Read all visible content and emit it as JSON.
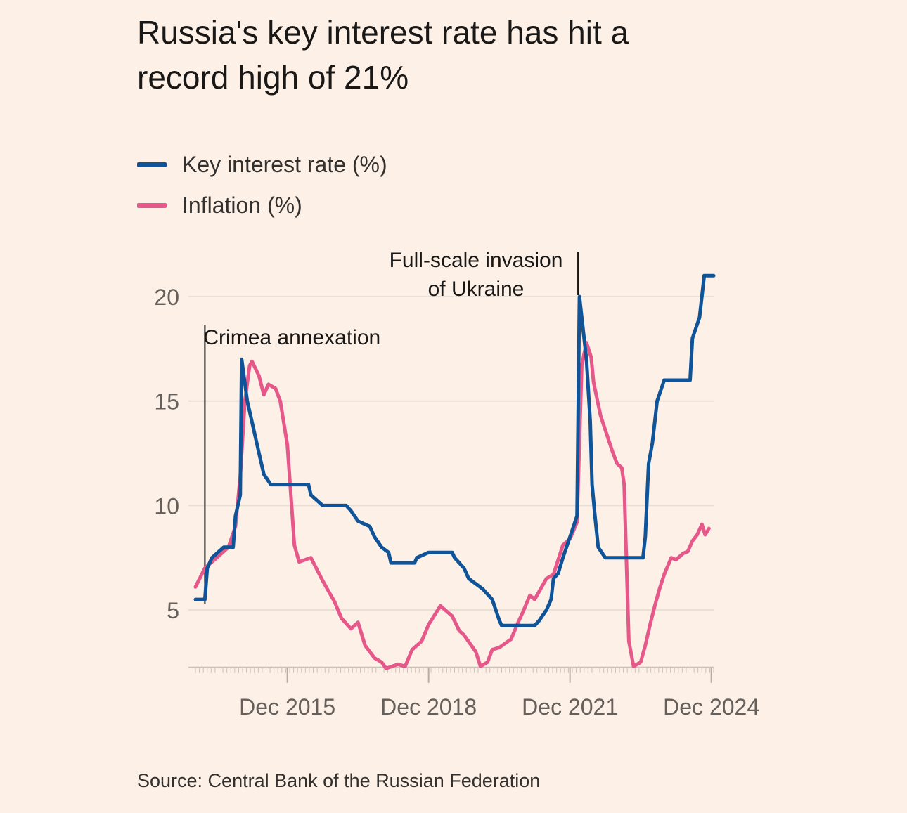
{
  "chart_data": {
    "type": "line",
    "title": "Russia's key interest rate has hit a record high of 21%",
    "source": "Source: Central Bank of the Russian Federation",
    "xlabel": "",
    "ylabel": "",
    "ylim": [
      2.25,
      21.5
    ],
    "xlim": [
      2014.0,
      2025.0
    ],
    "yticks": [
      5,
      10,
      15,
      20
    ],
    "xticks": [
      {
        "value": 2015.95,
        "label": "Dec 2015"
      },
      {
        "value": 2018.95,
        "label": "Dec 2018"
      },
      {
        "value": 2021.95,
        "label": "Dec 2021"
      },
      {
        "value": 2024.95,
        "label": "Dec 2024"
      }
    ],
    "grid": true,
    "legend_placement": "top-left",
    "annotations": [
      {
        "text_lines": [
          "Crimea annexation"
        ],
        "x": 2014.2
      },
      {
        "text_lines": [
          "Full-scale invasion",
          "of Ukraine"
        ],
        "x": 2022.15
      }
    ],
    "series": [
      {
        "name": "Key interest rate (%)",
        "color": "#0f5499",
        "x": [
          2014.0,
          2014.2,
          2014.25,
          2014.35,
          2014.6,
          2014.8,
          2014.85,
          2014.95,
          2014.98,
          2015.1,
          2015.2,
          2015.35,
          2015.45,
          2015.6,
          2016.4,
          2016.45,
          2016.7,
          2017.2,
          2017.3,
          2017.45,
          2017.7,
          2017.8,
          2017.95,
          2018.1,
          2018.15,
          2018.65,
          2018.7,
          2018.95,
          2019.45,
          2019.5,
          2019.6,
          2019.7,
          2019.8,
          2019.95,
          2020.1,
          2020.3,
          2020.45,
          2020.5,
          2021.2,
          2021.3,
          2021.45,
          2021.55,
          2021.6,
          2021.7,
          2021.8,
          2021.95,
          2022.1,
          2022.15,
          2022.3,
          2022.38,
          2022.42,
          2022.48,
          2022.55,
          2022.7,
          2023.5,
          2023.55,
          2023.62,
          2023.7,
          2023.8,
          2023.95,
          2024.5,
          2024.55,
          2024.7,
          2024.8,
          2025.0
        ],
        "y": [
          5.5,
          5.5,
          7.0,
          7.5,
          8.0,
          8.0,
          9.5,
          10.5,
          17.0,
          15.0,
          14.0,
          12.5,
          11.5,
          11.0,
          11.0,
          10.5,
          10.0,
          10.0,
          9.75,
          9.25,
          9.0,
          8.5,
          8.0,
          7.75,
          7.25,
          7.25,
          7.5,
          7.75,
          7.75,
          7.5,
          7.25,
          7.0,
          6.5,
          6.25,
          6.0,
          5.5,
          4.5,
          4.25,
          4.25,
          4.5,
          5.0,
          5.5,
          6.5,
          6.75,
          7.5,
          8.5,
          9.5,
          20.0,
          17.0,
          14.0,
          11.0,
          9.5,
          8.0,
          7.5,
          7.5,
          8.5,
          12.0,
          13.0,
          15.0,
          16.0,
          16.0,
          18.0,
          19.0,
          21.0,
          21.0
        ]
      },
      {
        "name": "Inflation (%)",
        "color": "#e6578a",
        "x": [
          2014.0,
          2014.2,
          2014.45,
          2014.7,
          2014.85,
          2014.95,
          2015.05,
          2015.15,
          2015.2,
          2015.35,
          2015.45,
          2015.55,
          2015.7,
          2015.8,
          2015.95,
          2016.1,
          2016.2,
          2016.45,
          2016.7,
          2016.85,
          2016.95,
          2017.1,
          2017.3,
          2017.45,
          2017.6,
          2017.8,
          2017.95,
          2018.05,
          2018.3,
          2018.45,
          2018.6,
          2018.8,
          2018.95,
          2019.2,
          2019.45,
          2019.6,
          2019.7,
          2019.95,
          2020.05,
          2020.2,
          2020.3,
          2020.45,
          2020.7,
          2020.85,
          2020.95,
          2021.1,
          2021.2,
          2021.45,
          2021.6,
          2021.7,
          2021.8,
          2021.95,
          2022.1,
          2022.2,
          2022.3,
          2022.4,
          2022.45,
          2022.6,
          2022.85,
          2022.95,
          2023.05,
          2023.1,
          2023.2,
          2023.3,
          2023.45,
          2023.55,
          2023.65,
          2023.75,
          2023.85,
          2023.95,
          2024.1,
          2024.2,
          2024.35,
          2024.45,
          2024.55,
          2024.65,
          2024.75,
          2024.82,
          2024.9
        ],
        "y": [
          6.1,
          7.0,
          7.5,
          8.0,
          9.0,
          11.4,
          15.0,
          16.7,
          16.9,
          16.2,
          15.3,
          15.8,
          15.6,
          15.0,
          12.9,
          8.1,
          7.3,
          7.5,
          6.4,
          5.8,
          5.4,
          4.6,
          4.1,
          4.4,
          3.3,
          2.7,
          2.5,
          2.2,
          2.4,
          2.3,
          3.1,
          3.5,
          4.3,
          5.2,
          4.7,
          4.0,
          3.8,
          3.0,
          2.3,
          2.5,
          3.1,
          3.2,
          3.6,
          4.4,
          4.9,
          5.7,
          5.5,
          6.5,
          6.7,
          7.4,
          8.1,
          8.4,
          9.2,
          16.7,
          17.8,
          17.1,
          15.9,
          14.3,
          12.6,
          12.0,
          11.8,
          11.0,
          3.5,
          2.3,
          2.5,
          3.3,
          4.3,
          5.2,
          6.0,
          6.7,
          7.5,
          7.4,
          7.7,
          7.8,
          8.3,
          8.6,
          9.1,
          8.6,
          8.9
        ]
      }
    ]
  }
}
